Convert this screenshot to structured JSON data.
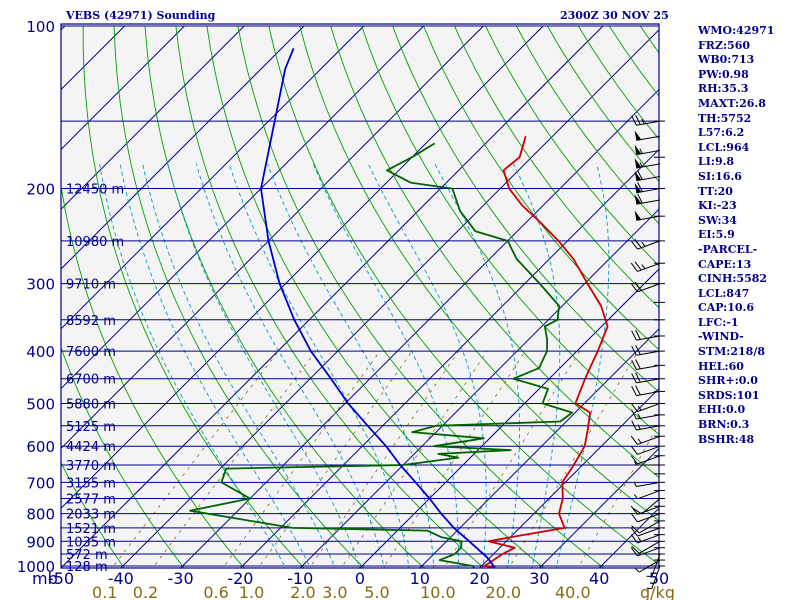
{
  "header": {
    "title_left": "VEBS (42971) Sounding",
    "title_right": "2300Z 30 NOV 25"
  },
  "indices": [
    "WMO:42971",
    "FRZ:560",
    "WB0:713",
    "PW:0.98",
    "RH:35.3",
    "MAXT:26.8",
    "TH:5752",
    "L57:6.2",
    "LCL:964",
    "LI:9.8",
    "SI:16.6",
    "TT:20",
    "KI:-23",
    "SW:34",
    "EI:5.9",
    "-PARCEL-",
    "CAPE:13",
    "CINH:5582",
    "LCL:847",
    "CAP:10.6",
    "LFC:-1",
    "-WIND-",
    "STM:218/8",
    "HEL:60",
    "SHR+:0.0",
    "SRDS:101",
    "EHI:0.0",
    "BRN:0.3",
    "BSHR:48"
  ],
  "colors": {
    "text": "#00008b",
    "isobar": "#00008b",
    "isotherm": "#00008b",
    "dry_adiabat": "#00a000",
    "moist_adiabat": "#009acd",
    "mixing_ratio": "#8b6914",
    "temperature": "#cc0000",
    "dewpoint": "#006400",
    "parcel": "#0000cd",
    "wind": "#000000"
  },
  "chart_data": {
    "type": "skew-t log-p sounding",
    "x_unit": "°C",
    "y_unit": "mb",
    "xlim": [
      -50,
      50
    ],
    "ylim": [
      1000,
      100
    ],
    "x_axis_label": "mb",
    "x_ticks": [
      "-50",
      "-40",
      "-30",
      "-20",
      "-10",
      "0",
      "10",
      "20",
      "30",
      "40",
      "50"
    ],
    "y_ticks": [
      {
        "p": 100,
        "label": "100"
      },
      {
        "p": 200,
        "label": "200"
      },
      {
        "p": 300,
        "label": "300"
      },
      {
        "p": 400,
        "label": "400"
      },
      {
        "p": 500,
        "label": "500"
      },
      {
        "p": 600,
        "label": "600"
      },
      {
        "p": 700,
        "label": "700"
      },
      {
        "p": 800,
        "label": "800"
      },
      {
        "p": 900,
        "label": "900"
      },
      {
        "p": 1000,
        "label": "1000"
      }
    ],
    "mixing_ratio_unit": "g/kg",
    "mixing_ratio_labels": [
      {
        "w": 0.1,
        "label": "0.1"
      },
      {
        "w": 0.2,
        "label": "0.2"
      },
      {
        "w": 0.6,
        "label": "0.6"
      },
      {
        "w": 1.0,
        "label": "1.0"
      },
      {
        "w": 2.0,
        "label": "2.0"
      },
      {
        "w": 3.0,
        "label": "3.0"
      },
      {
        "w": 5.0,
        "label": "5.0"
      },
      {
        "w": 10.0,
        "label": "10.0"
      },
      {
        "w": 20.0,
        "label": "20.0"
      },
      {
        "w": 40.0,
        "label": "40.0"
      }
    ],
    "heights": [
      {
        "p": 200,
        "label": "12450 m"
      },
      {
        "p": 250,
        "label": "10980 m"
      },
      {
        "p": 300,
        "label": "9710 m"
      },
      {
        "p": 350,
        "label": "8592 m"
      },
      {
        "p": 400,
        "label": "7600 m"
      },
      {
        "p": 450,
        "label": "6700 m"
      },
      {
        "p": 500,
        "label": "5880 m"
      },
      {
        "p": 550,
        "label": "5125 m"
      },
      {
        "p": 600,
        "label": "4424 m"
      },
      {
        "p": 650,
        "label": "3770 m"
      },
      {
        "p": 700,
        "label": "3155 m"
      },
      {
        "p": 750,
        "label": "2577 m"
      },
      {
        "p": 800,
        "label": "2033 m"
      },
      {
        "p": 850,
        "label": "1521 m"
      },
      {
        "p": 900,
        "label": "1035 m"
      },
      {
        "p": 950,
        "label": "572 m"
      },
      {
        "p": 1000,
        "label": "128 m"
      }
    ],
    "series": [
      {
        "name": "temperature",
        "points": [
          [
            1007,
            22.5
          ],
          [
            1000,
            20.5
          ],
          [
            950,
            21.5
          ],
          [
            925,
            22.5
          ],
          [
            900,
            17.0
          ],
          [
            880,
            21.0
          ],
          [
            850,
            27.5
          ],
          [
            800,
            24.2
          ],
          [
            750,
            22.3
          ],
          [
            700,
            19.5
          ],
          [
            650,
            18.5
          ],
          [
            600,
            17.2
          ],
          [
            560,
            15.0
          ],
          [
            520,
            12.5
          ],
          [
            500,
            8.5
          ],
          [
            450,
            6.0
          ],
          [
            420,
            4.5
          ],
          [
            400,
            3.5
          ],
          [
            360,
            1.0
          ],
          [
            330,
            -3.5
          ],
          [
            300,
            -9.5
          ],
          [
            270,
            -16.0
          ],
          [
            250,
            -21.5
          ],
          [
            230,
            -28.0
          ],
          [
            215,
            -33.5
          ],
          [
            200,
            -38.5
          ],
          [
            185,
            -42.5
          ],
          [
            175,
            -42.0
          ],
          [
            160,
            -44.5
          ]
        ]
      },
      {
        "name": "dewpoint",
        "points": [
          [
            1007,
            19.0
          ],
          [
            1000,
            18.5
          ],
          [
            975,
            12.0
          ],
          [
            950,
            13.5
          ],
          [
            925,
            13.5
          ],
          [
            900,
            12.5
          ],
          [
            885,
            8.5
          ],
          [
            860,
            5.0
          ],
          [
            850,
            -18.0
          ],
          [
            790,
            -38.0
          ],
          [
            750,
            -30.0
          ],
          [
            700,
            -37.5
          ],
          [
            660,
            -39.0
          ],
          [
            650,
            -10.0
          ],
          [
            630,
            -2.0
          ],
          [
            620,
            -6.0
          ],
          [
            610,
            5.5
          ],
          [
            600,
            -8.0
          ],
          [
            580,
            -1.0
          ],
          [
            565,
            -14.0
          ],
          [
            550,
            -11.0
          ],
          [
            540,
            9.0
          ],
          [
            520,
            9.5
          ],
          [
            500,
            3.0
          ],
          [
            470,
            1.5
          ],
          [
            450,
            -6.0
          ],
          [
            430,
            -3.5
          ],
          [
            400,
            -5.0
          ],
          [
            380,
            -7.0
          ],
          [
            360,
            -9.5
          ],
          [
            350,
            -8.5
          ],
          [
            330,
            -10.5
          ],
          [
            300,
            -17.5
          ],
          [
            270,
            -25.5
          ],
          [
            250,
            -30.0
          ],
          [
            240,
            -37.0
          ],
          [
            220,
            -43.0
          ],
          [
            200,
            -48.0
          ],
          [
            195,
            -56.0
          ],
          [
            185,
            -62.0
          ],
          [
            175,
            -60.0
          ],
          [
            165,
            -58.5
          ]
        ]
      },
      {
        "name": "parcel",
        "points": [
          [
            1007,
            22.5
          ],
          [
            964,
            19.5
          ],
          [
            900,
            13.8
          ],
          [
            850,
            9.0
          ],
          [
            800,
            4.5
          ],
          [
            750,
            0.0
          ],
          [
            700,
            -5.0
          ],
          [
            650,
            -10.5
          ],
          [
            600,
            -16.0
          ],
          [
            550,
            -22.5
          ],
          [
            500,
            -29.5
          ],
          [
            450,
            -36.5
          ],
          [
            400,
            -44.5
          ],
          [
            350,
            -52.5
          ],
          [
            300,
            -61.0
          ],
          [
            250,
            -70.0
          ],
          [
            200,
            -80.0
          ],
          [
            150,
            -89.0
          ],
          [
            120,
            -96.0
          ],
          [
            110,
            -98.0
          ]
        ]
      }
    ],
    "wind_barbs": [
      [
        1000,
        200,
        5
      ],
      [
        975,
        240,
        5
      ],
      [
        950,
        200,
        5
      ],
      [
        925,
        250,
        10
      ],
      [
        900,
        240,
        10
      ],
      [
        875,
        250,
        15
      ],
      [
        850,
        250,
        10
      ],
      [
        825,
        240,
        10
      ],
      [
        800,
        250,
        10
      ],
      [
        775,
        250,
        10
      ],
      [
        750,
        230,
        10
      ],
      [
        725,
        250,
        5
      ],
      [
        700,
        260,
        5
      ],
      [
        650,
        270,
        5
      ],
      [
        625,
        250,
        10
      ],
      [
        600,
        250,
        10
      ],
      [
        575,
        250,
        15
      ],
      [
        550,
        260,
        15
      ],
      [
        525,
        260,
        15
      ],
      [
        500,
        250,
        15
      ],
      [
        475,
        260,
        20
      ],
      [
        450,
        260,
        20
      ],
      [
        425,
        260,
        20
      ],
      [
        400,
        260,
        20
      ],
      [
        375,
        260,
        20
      ],
      [
        300,
        250,
        20
      ],
      [
        275,
        250,
        25
      ],
      [
        250,
        250,
        25
      ],
      [
        225,
        260,
        50
      ],
      [
        210,
        260,
        60
      ],
      [
        200,
        260,
        60
      ],
      [
        190,
        260,
        60
      ],
      [
        180,
        260,
        55
      ],
      [
        170,
        260,
        55
      ],
      [
        160,
        260,
        50
      ],
      [
        150,
        260,
        25
      ]
    ]
  }
}
